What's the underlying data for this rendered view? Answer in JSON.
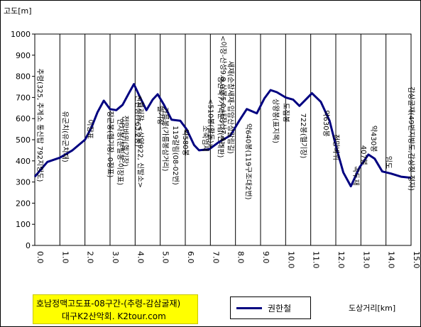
{
  "chart_data": {
    "type": "line",
    "caption": {
      "title": "호남정맥고도표-08구간-(추령-감삼굴재)",
      "subtitle": "대구K2산악회. K2tour.com"
    },
    "xlabel": "도상거리[km]",
    "ylabel": "고도[m]",
    "xlim": [
      0,
      15
    ],
    "ylim": [
      0,
      1000
    ],
    "x_ticks": [
      "0.0",
      "1.0",
      "2.0",
      "3.0",
      "4.0",
      "5.0",
      "6.0",
      "7.0",
      "8.0",
      "9.0",
      "10.0",
      "11.0",
      "12.0",
      "13.0",
      "14.0",
      "15.0"
    ],
    "y_ticks": [
      "0",
      "100",
      "200",
      "300",
      "400",
      "500",
      "600",
      "700",
      "800",
      "900",
      "1000"
    ],
    "grid": "vertical",
    "legend_position": "bottom-right",
    "series": [
      {
        "name": "권한철",
        "color": "#000080",
        "points": [
          [
            0.0,
            325
          ],
          [
            0.5,
            395
          ],
          [
            1.0,
            415
          ],
          [
            1.5,
            450
          ],
          [
            2.0,
            500
          ],
          [
            2.25,
            555
          ],
          [
            2.5,
            630
          ],
          [
            2.75,
            685
          ],
          [
            3.0,
            645
          ],
          [
            3.25,
            640
          ],
          [
            3.5,
            665
          ],
          [
            3.75,
            720
          ],
          [
            3.95,
            763
          ],
          [
            4.2,
            700
          ],
          [
            4.45,
            640
          ],
          [
            4.7,
            690
          ],
          [
            4.9,
            715
          ],
          [
            5.15,
            665
          ],
          [
            5.45,
            595
          ],
          [
            5.8,
            590
          ],
          [
            6.05,
            550
          ],
          [
            6.35,
            475
          ],
          [
            6.55,
            450
          ],
          [
            6.95,
            455
          ],
          [
            7.35,
            490
          ],
          [
            7.8,
            520
          ],
          [
            8.15,
            590
          ],
          [
            8.45,
            645
          ],
          [
            8.85,
            625
          ],
          [
            9.15,
            695
          ],
          [
            9.4,
            735
          ],
          [
            9.65,
            725
          ],
          [
            10.0,
            700
          ],
          [
            10.3,
            690
          ],
          [
            10.55,
            660
          ],
          [
            10.8,
            690
          ],
          [
            11.05,
            720
          ],
          [
            11.4,
            680
          ],
          [
            11.75,
            590
          ],
          [
            12.05,
            450
          ],
          [
            12.3,
            345
          ],
          [
            12.6,
            280
          ],
          [
            12.95,
            370
          ],
          [
            13.3,
            430
          ],
          [
            13.55,
            410
          ],
          [
            13.85,
            350
          ],
          [
            14.2,
            340
          ],
          [
            14.6,
            325
          ],
          [
            15.0,
            320
          ]
        ]
      }
    ],
    "annotations": [
      {
        "x": 0.0,
        "text": "추령(325, 추계소 통신탑 792지방도)"
      },
      {
        "x": 1.0,
        "text": "유군치(유군치재)"
      },
      {
        "x": 2.0,
        "text": "이장표"
      },
      {
        "x": 2.8,
        "text": "장군봉(헬기장, 0장표)"
      },
      {
        "x": 3.2,
        "text": "연자봉(문필봉-이장표)"
      },
      {
        "x": 3.4,
        "text": "전망바위(헬기장)"
      },
      {
        "x": 3.9,
        "text": "신선봉(763.2봉)"
      },
      {
        "x": 4.0,
        "text": "<헬기장, <삼양922, 신발소>"
      },
      {
        "x": 4.8,
        "text": "헬기장"
      },
      {
        "x": 5.0,
        "text": "가름봉(가름봉삼거리)"
      },
      {
        "x": 5.4,
        "text": "119갈림(08-02번)"
      },
      {
        "x": 5.8,
        "text": "약580봉"
      },
      {
        "x": 6.6,
        "text": "소죽엄재"
      },
      {
        "x": 6.8,
        "text": "<510봉(활동)>"
      },
      {
        "x": 7.2,
        "text": "영산북7기맥분기점(안내판)"
      },
      {
        "x": 7.3,
        "text": "<이장-산성9.8,삼봉5.0,내장산7.4>"
      },
      {
        "x": 7.6,
        "text": "새재(순창새재-입암산성갈림길)"
      },
      {
        "x": 8.3,
        "text": "약640봉(119구조대2번)"
      },
      {
        "x": 9.4,
        "text": "상왕봉(표지목)"
      },
      {
        "x": 9.8,
        "text": "도집봉"
      },
      {
        "x": 10.5,
        "text": "722봉(헬기장)"
      },
      {
        "x": 11.4,
        "text": "약630봉"
      },
      {
        "x": 11.8,
        "text": "전망바위"
      },
      {
        "x": 12.6,
        "text": "곡두재"
      },
      {
        "x": 12.9,
        "text": "407봉"
      },
      {
        "x": 13.3,
        "text": "약430봉"
      },
      {
        "x": 13.9,
        "text": "임도"
      },
      {
        "x": 14.8,
        "text": "감상굴재(49번지방도,감상정-정자)"
      }
    ]
  }
}
